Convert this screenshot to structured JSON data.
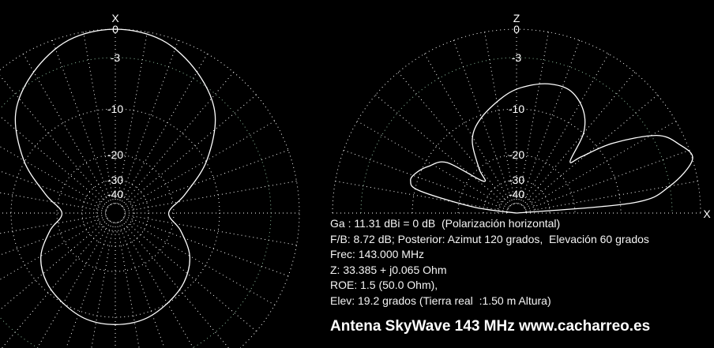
{
  "chart_data": [
    {
      "type": "polar-line",
      "axis_label": "X",
      "view": "azimuth",
      "scale": "log-dB",
      "ring_labels": [
        "0",
        "-3",
        "-10",
        "-20",
        "-30",
        "-40"
      ],
      "ring_values_db": [
        0,
        -3,
        -10,
        -20,
        -30,
        -40
      ],
      "radial_step_deg": 10,
      "grid": true,
      "series": [
        {
          "angles_deg": [
            0,
            15,
            30,
            45,
            60,
            75,
            90,
            105,
            120,
            135,
            150,
            165,
            180,
            195,
            210,
            225,
            240,
            255,
            270,
            285,
            300,
            315,
            330,
            345,
            360
          ],
          "gain_db": [
            0,
            -0.5,
            -2.2,
            -5,
            -9.8,
            -17,
            -22,
            -18,
            -14,
            -11.5,
            -10,
            -9.2,
            -9,
            -9.2,
            -10,
            -11.5,
            -14,
            -18,
            -22,
            -17,
            -9.8,
            -5,
            -2.2,
            -0.5,
            0
          ]
        }
      ]
    },
    {
      "type": "polar-line",
      "axis_label_top": "Z",
      "axis_label_right": "X",
      "view": "elevation",
      "scale": "log-dB",
      "ring_labels": [
        "0",
        "-3",
        "-10",
        "-20",
        "-30",
        "-40"
      ],
      "ring_values_db": [
        0,
        -3,
        -10,
        -20,
        -30,
        -40
      ],
      "radial_step_deg": 10,
      "grid": true,
      "series": [
        {
          "angles_deg": [
            0,
            5,
            10,
            17,
            23,
            29,
            36,
            41,
            44,
            50,
            57,
            66,
            75,
            85,
            95,
            110,
            121,
            130,
            136,
            144,
            152,
            158,
            163,
            167,
            172,
            180
          ],
          "gain_db": [
            -60,
            -8.3,
            -3,
            0,
            -0.8,
            -2.5,
            -8,
            -14,
            -16.5,
            -10,
            -7.5,
            -6,
            -6,
            -6.8,
            -8,
            -10.5,
            -14,
            -20,
            -25,
            -14,
            -11,
            -9.5,
            -9.1,
            -11,
            -26,
            -60
          ]
        }
      ]
    }
  ],
  "colors": {
    "background": "#000000",
    "pattern": "#ffffff",
    "grid": "#ffffff",
    "ring_minus3": "#8fbf9f"
  },
  "info": {
    "gain": "Ga : 11.31 dBi = 0 dB  (Polarización horizontal)",
    "fb": "F/B: 8.72 dB; Posterior: Azimut 120 grados,  Elevación 60 grados",
    "freq": "Frec: 143.000 MHz",
    "z": "Z: 33.385 + j0.065 Ohm",
    "roe": "ROE: 1.5 (50.0 Ohm),",
    "elev": "Elev: 19.2 grados (Tierra real  :1.50 m Altura)"
  },
  "title": "Antena SkyWave 143 MHz www.cacharreo.es"
}
